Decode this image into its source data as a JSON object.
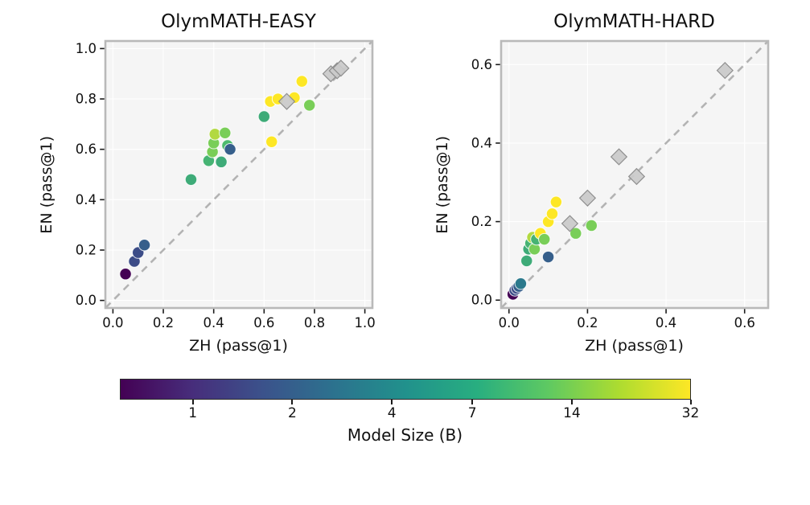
{
  "figure": {
    "background": "#ffffff",
    "panel_face": "#f5f5f5",
    "spine_color": "#b9b9b9",
    "diagonal_color": "#b3b3b3",
    "diamond_color": "#c9c9c9"
  },
  "colorbar": {
    "label": "Model Size (B)",
    "ticks": [
      1,
      2,
      4,
      7,
      14,
      32
    ],
    "scale": "log",
    "vmin": 0.6,
    "vmax": 32,
    "gradient": [
      "#440154",
      "#472d7b",
      "#3b528b",
      "#2c728e",
      "#21918c",
      "#28ae80",
      "#5ec962",
      "#addc30",
      "#fde725"
    ]
  },
  "chart_data": [
    {
      "type": "scatter",
      "title": "OlymMATH-EASY",
      "xlabel": "ZH (pass@1)",
      "ylabel": "EN (pass@1)",
      "xlim": [
        -0.03,
        1.03
      ],
      "ylim": [
        -0.03,
        1.03
      ],
      "xticks": [
        0.0,
        0.2,
        0.4,
        0.6,
        0.8,
        1.0
      ],
      "yticks": [
        0.0,
        0.2,
        0.4,
        0.6,
        0.8,
        1.0
      ],
      "diagonal": true,
      "series": [
        {
          "name": "circles-models-by-size",
          "marker": "circle",
          "color_key": "model_size_b",
          "points": [
            [
              0.05,
              0.105,
              0.6
            ],
            [
              0.085,
              0.155,
              1.5
            ],
            [
              0.1,
              0.19,
              1.5
            ],
            [
              0.125,
              0.22,
              2
            ],
            [
              0.31,
              0.48,
              7
            ],
            [
              0.38,
              0.555,
              8
            ],
            [
              0.395,
              0.59,
              14
            ],
            [
              0.4,
              0.625,
              14
            ],
            [
              0.405,
              0.66,
              20
            ],
            [
              0.445,
              0.665,
              14
            ],
            [
              0.43,
              0.55,
              7
            ],
            [
              0.455,
              0.615,
              9
            ],
            [
              0.465,
              0.6,
              2
            ],
            [
              0.6,
              0.73,
              7
            ],
            [
              0.63,
              0.63,
              32
            ],
            [
              0.625,
              0.79,
              32
            ],
            [
              0.655,
              0.8,
              32
            ],
            [
              0.72,
              0.805,
              32
            ],
            [
              0.75,
              0.87,
              32
            ],
            [
              0.78,
              0.775,
              14
            ]
          ]
        },
        {
          "name": "diamonds-reference-models",
          "marker": "diamond",
          "color": "#c9c9c9",
          "points": [
            [
              0.69,
              0.79
            ],
            [
              0.865,
              0.9
            ],
            [
              0.89,
              0.912
            ],
            [
              0.905,
              0.922
            ]
          ]
        }
      ]
    },
    {
      "type": "scatter",
      "title": "OlymMATH-HARD",
      "xlabel": "ZH (pass@1)",
      "ylabel": "EN (pass@1)",
      "xlim": [
        -0.02,
        0.66
      ],
      "ylim": [
        -0.02,
        0.66
      ],
      "xticks": [
        0.0,
        0.2,
        0.4,
        0.6
      ],
      "yticks": [
        0.0,
        0.2,
        0.4,
        0.6
      ],
      "diagonal": true,
      "series": [
        {
          "name": "circles-models-by-size",
          "marker": "circle",
          "color_key": "model_size_b",
          "points": [
            [
              0.01,
              0.015,
              0.6
            ],
            [
              0.015,
              0.025,
              1.5
            ],
            [
              0.02,
              0.03,
              1.5
            ],
            [
              0.025,
              0.035,
              2
            ],
            [
              0.03,
              0.042,
              3
            ],
            [
              0.045,
              0.1,
              7
            ],
            [
              0.05,
              0.13,
              7
            ],
            [
              0.055,
              0.145,
              8
            ],
            [
              0.06,
              0.16,
              20
            ],
            [
              0.065,
              0.13,
              14
            ],
            [
              0.07,
              0.155,
              8
            ],
            [
              0.08,
              0.17,
              32
            ],
            [
              0.09,
              0.155,
              14
            ],
            [
              0.1,
              0.11,
              2
            ],
            [
              0.1,
              0.2,
              32
            ],
            [
              0.11,
              0.22,
              32
            ],
            [
              0.12,
              0.25,
              32
            ],
            [
              0.17,
              0.17,
              14
            ],
            [
              0.21,
              0.19,
              14
            ]
          ]
        },
        {
          "name": "diamonds-reference-models",
          "marker": "diamond",
          "color": "#c9c9c9",
          "points": [
            [
              0.155,
              0.195
            ],
            [
              0.2,
              0.26
            ],
            [
              0.28,
              0.365
            ],
            [
              0.325,
              0.315
            ],
            [
              0.55,
              0.585
            ]
          ]
        }
      ]
    }
  ]
}
